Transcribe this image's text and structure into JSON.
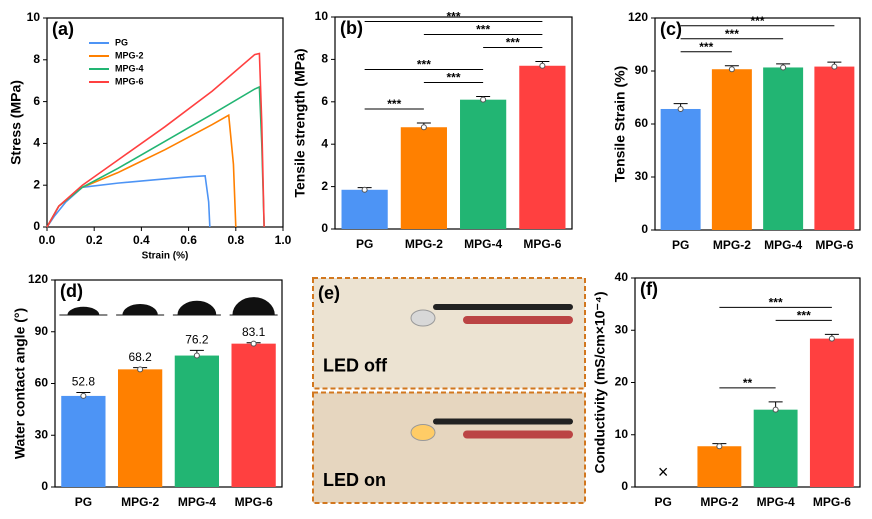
{
  "chart_data": [
    {
      "type": "line",
      "panel_label": "(a)",
      "xlabel": "Strain (%)",
      "ylabel": "Stress (MPa)",
      "xlim": [
        0,
        1
      ],
      "xticks": [
        {
          "value": 0,
          "label": "0.0"
        },
        {
          "value": 0.2,
          "label": "0.2"
        },
        {
          "value": 0.4,
          "label": "0.4"
        },
        {
          "value": 0.6,
          "label": "0.6"
        },
        {
          "value": 0.8,
          "label": "0.8"
        },
        {
          "value": 1,
          "label": "1.0"
        }
      ],
      "ylim": [
        0,
        10
      ],
      "yticks": [
        0,
        2,
        4,
        6,
        8,
        10
      ],
      "legend": "upper left",
      "series": [
        {
          "name": "PG",
          "color": "#4d94f5",
          "x": [
            0,
            0.03,
            0.08,
            0.15,
            0.3,
            0.45,
            0.6,
            0.67,
            0.685,
            0.69
          ],
          "values": [
            0,
            0.5,
            1.2,
            1.9,
            2.1,
            2.25,
            2.4,
            2.45,
            1.2,
            0
          ]
        },
        {
          "name": "MPG-2",
          "color": "#ff8000",
          "x": [
            0,
            0.05,
            0.15,
            0.3,
            0.5,
            0.7,
            0.77,
            0.79,
            0.8
          ],
          "values": [
            0,
            1,
            1.9,
            2.6,
            3.7,
            4.9,
            5.35,
            3,
            0
          ]
        },
        {
          "name": "MPG-4",
          "color": "#22b573",
          "x": [
            0,
            0.05,
            0.15,
            0.3,
            0.5,
            0.7,
            0.88,
            0.9,
            0.91,
            0.92
          ],
          "values": [
            0,
            1,
            1.9,
            2.8,
            4.1,
            5.4,
            6.6,
            6.7,
            4,
            0
          ]
        },
        {
          "name": "MPG-6",
          "color": "#ff4040",
          "x": [
            0,
            0.05,
            0.15,
            0.3,
            0.5,
            0.7,
            0.88,
            0.9,
            0.91,
            0.92
          ],
          "values": [
            0,
            1,
            2,
            3.2,
            4.8,
            6.5,
            8.25,
            8.3,
            5,
            0
          ]
        }
      ]
    },
    {
      "type": "bar",
      "panel_label": "(b)",
      "ylabel": "Tensile strength (MPa)",
      "categories": [
        "PG",
        "MPG-2",
        "MPG-4",
        "MPG-6"
      ],
      "values": [
        1.85,
        4.8,
        6.1,
        7.7
      ],
      "errors": [
        0.1,
        0.2,
        0.15,
        0.2
      ],
      "colors": [
        "#4d94f5",
        "#ff8000",
        "#22b573",
        "#ff4040"
      ],
      "ylim": [
        0,
        10
      ],
      "yticks": [
        0,
        2,
        4,
        6,
        8,
        10
      ],
      "significance": [
        {
          "between": [
            "PG",
            "MPG-2"
          ],
          "label": "***"
        },
        {
          "between": [
            "MPG-2",
            "MPG-4"
          ],
          "label": "***"
        },
        {
          "between": [
            "PG",
            "MPG-4"
          ],
          "label": "***"
        },
        {
          "between": [
            "MPG-4",
            "MPG-6"
          ],
          "label": "***"
        },
        {
          "between": [
            "MPG-2",
            "MPG-6"
          ],
          "label": "***"
        },
        {
          "between": [
            "PG",
            "MPG-6"
          ],
          "label": "***"
        }
      ]
    },
    {
      "type": "bar",
      "panel_label": "(c)",
      "ylabel": "Tensile Strain (%)",
      "categories": [
        "PG",
        "MPG-2",
        "MPG-4",
        "MPG-6"
      ],
      "values": [
        68.5,
        91,
        92,
        92.5
      ],
      "errors": [
        3,
        2,
        2,
        2.5
      ],
      "colors": [
        "#4d94f5",
        "#ff8000",
        "#22b573",
        "#ff4040"
      ],
      "ylim": [
        0,
        120
      ],
      "yticks": [
        0,
        30,
        60,
        90,
        120
      ],
      "significance": [
        {
          "between": [
            "PG",
            "MPG-2"
          ],
          "label": "***"
        },
        {
          "between": [
            "PG",
            "MPG-4"
          ],
          "label": "***"
        },
        {
          "between": [
            "PG",
            "MPG-6"
          ],
          "label": "***"
        }
      ]
    },
    {
      "type": "bar",
      "panel_label": "(d)",
      "ylabel": "Water contact angle (°)",
      "categories": [
        "PG",
        "MPG-2",
        "MPG-4",
        "MPG-6"
      ],
      "values": [
        52.8,
        68.2,
        76.2,
        83.1
      ],
      "errors": [
        2,
        1,
        3,
        0.5
      ],
      "colors": [
        "#4d94f5",
        "#ff8000",
        "#22b573",
        "#ff4040"
      ],
      "ylim": [
        0,
        120
      ],
      "yticks": [
        0,
        30,
        60,
        90,
        120
      ],
      "data_labels": true,
      "significance": []
    },
    {
      "type": "photo",
      "panel_label": "(e)",
      "captions": [
        "LED off",
        "LED on"
      ]
    },
    {
      "type": "bar",
      "panel_label": "(f)",
      "ylabel": "Conductivity (mS/cm×10⁻⁴)",
      "categories": [
        "PG",
        "MPG-2",
        "MPG-4",
        "MPG-6"
      ],
      "values": [
        null,
        7.8,
        14.8,
        28.4
      ],
      "errors": [
        null,
        0.5,
        1.5,
        0.8
      ],
      "missing_marker": "×",
      "colors": [
        "#4d94f5",
        "#ff8000",
        "#22b573",
        "#ff4040"
      ],
      "ylim": [
        0,
        40
      ],
      "yticks": [
        0,
        10,
        20,
        30,
        40
      ],
      "significance": [
        {
          "between": [
            "MPG-2",
            "MPG-4"
          ],
          "label": "**"
        },
        {
          "between": [
            "MPG-4",
            "MPG-6"
          ],
          "label": "***"
        },
        {
          "between": [
            "MPG-2",
            "MPG-6"
          ],
          "label": "***"
        }
      ]
    }
  ]
}
